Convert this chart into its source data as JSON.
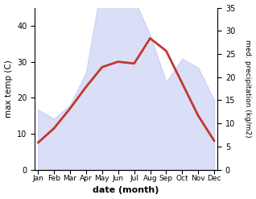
{
  "months": [
    "Jan",
    "Feb",
    "Mar",
    "Apr",
    "May",
    "Jun",
    "Jul",
    "Aug",
    "Sep",
    "Oct",
    "Nov",
    "Dec"
  ],
  "temp": [
    7.5,
    11.5,
    17.0,
    23.0,
    28.5,
    30.0,
    29.5,
    36.5,
    33.0,
    24.0,
    15.0,
    8.0
  ],
  "precip": [
    13,
    11,
    14,
    21,
    41,
    37,
    37,
    29,
    19,
    24,
    22,
    15
  ],
  "temp_color": "#c0392b",
  "precip_fill_color": "#b8bef0",
  "temp_ylim": [
    0,
    45
  ],
  "precip_ylim": [
    0,
    35
  ],
  "temp_yticks": [
    0,
    10,
    20,
    30,
    40
  ],
  "precip_yticks": [
    0,
    5,
    10,
    15,
    20,
    25,
    30,
    35
  ],
  "ylabel_left": "max temp (C)",
  "ylabel_right": "med. precipitation (kg/m2)",
  "xlabel": "date (month)",
  "bg_color": "#ffffff",
  "temp_linewidth": 2.0,
  "precip_alpha": 0.5
}
